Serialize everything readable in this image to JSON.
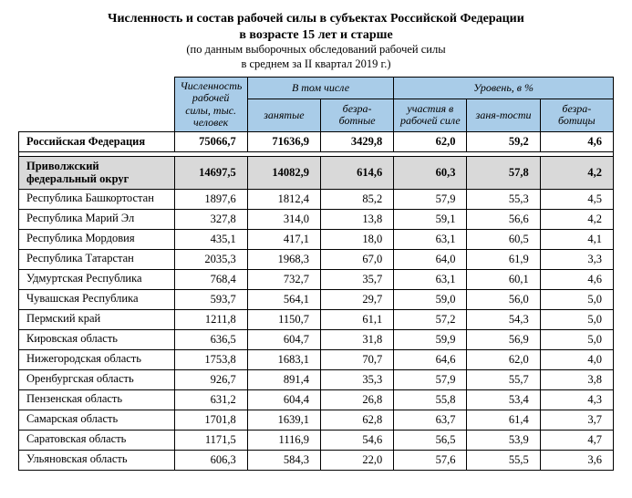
{
  "header": {
    "title1": "Численность и состав рабочей силы в субъектах Российской Федерации",
    "title2": "в возрасте 15 лет и старше",
    "sub1": "(по данным выборочных обследований рабочей силы",
    "sub2": "в среднем за II квартал 2019 г.)"
  },
  "columns": {
    "c1": "Численность рабочей силы, тыс. человек",
    "g1": "В том числе",
    "g2": "Уровень, в %",
    "c2": "занятые",
    "c3": "безра-ботные",
    "c4": "участия в рабочей силе",
    "c5": "заня-тости",
    "c6": "безра-ботицы"
  },
  "rf": {
    "name": "Российская Федерация",
    "v1": "75066,7",
    "v2": "71636,9",
    "v3": "3429,8",
    "v4": "62,0",
    "v5": "59,2",
    "v6": "4,6"
  },
  "district": {
    "name": "Приволжский федеральный округ",
    "v1": "14697,5",
    "v2": "14082,9",
    "v3": "614,6",
    "v4": "60,3",
    "v5": "57,8",
    "v6": "4,2"
  },
  "rows": [
    {
      "name": "Республика Башкортостан",
      "v1": "1897,6",
      "v2": "1812,4",
      "v3": "85,2",
      "v4": "57,9",
      "v5": "55,3",
      "v6": "4,5"
    },
    {
      "name": "Республика Марий Эл",
      "v1": "327,8",
      "v2": "314,0",
      "v3": "13,8",
      "v4": "59,1",
      "v5": "56,6",
      "v6": "4,2"
    },
    {
      "name": "Республика Мордовия",
      "v1": "435,1",
      "v2": "417,1",
      "v3": "18,0",
      "v4": "63,1",
      "v5": "60,5",
      "v6": "4,1"
    },
    {
      "name": "Республика Татарстан",
      "v1": "2035,3",
      "v2": "1968,3",
      "v3": "67,0",
      "v4": "64,0",
      "v5": "61,9",
      "v6": "3,3"
    },
    {
      "name": "Удмуртская Республика",
      "v1": "768,4",
      "v2": "732,7",
      "v3": "35,7",
      "v4": "63,1",
      "v5": "60,1",
      "v6": "4,6"
    },
    {
      "name": "Чувашская Республика",
      "v1": "593,7",
      "v2": "564,1",
      "v3": "29,7",
      "v4": "59,0",
      "v5": "56,0",
      "v6": "5,0"
    },
    {
      "name": "Пермский край",
      "v1": "1211,8",
      "v2": "1150,7",
      "v3": "61,1",
      "v4": "57,2",
      "v5": "54,3",
      "v6": "5,0"
    },
    {
      "name": "Кировская область",
      "v1": "636,5",
      "v2": "604,7",
      "v3": "31,8",
      "v4": "59,9",
      "v5": "56,9",
      "v6": "5,0"
    },
    {
      "name": "Нижегородская область",
      "v1": "1753,8",
      "v2": "1683,1",
      "v3": "70,7",
      "v4": "64,6",
      "v5": "62,0",
      "v6": "4,0"
    },
    {
      "name": "Оренбургская область",
      "v1": "926,7",
      "v2": "891,4",
      "v3": "35,3",
      "v4": "57,9",
      "v5": "55,7",
      "v6": "3,8"
    },
    {
      "name": "Пензенская область",
      "v1": "631,2",
      "v2": "604,4",
      "v3": "26,8",
      "v4": "55,8",
      "v5": "53,4",
      "v6": "4,3"
    },
    {
      "name": "Самарская область",
      "v1": "1701,8",
      "v2": "1639,1",
      "v3": "62,8",
      "v4": "63,7",
      "v5": "61,4",
      "v6": "3,7"
    },
    {
      "name": "Саратовская область",
      "v1": "1171,5",
      "v2": "1116,9",
      "v3": "54,6",
      "v4": "56,5",
      "v5": "53,9",
      "v6": "4,7"
    },
    {
      "name": "Ульяновская область",
      "v1": "606,3",
      "v2": "584,3",
      "v3": "22,0",
      "v4": "57,6",
      "v5": "55,5",
      "v6": "3,6"
    }
  ]
}
